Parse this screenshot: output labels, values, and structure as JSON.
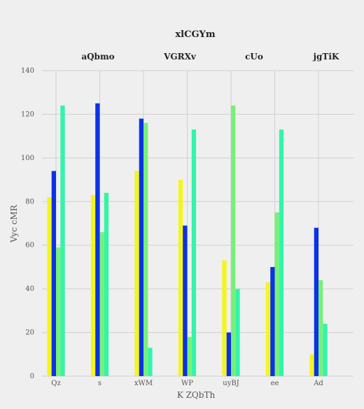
{
  "chart_data": {
    "type": "bar",
    "title": "xlCGYm",
    "xlabel": "K ZQbTh",
    "ylabel": "Vyc cMR",
    "ylim": [
      0,
      140
    ],
    "yticks": [
      0,
      20,
      40,
      60,
      80,
      100,
      120,
      140
    ],
    "grid": true,
    "legend_position": "top",
    "categories": [
      "Qz",
      "s",
      "xWM",
      "WP",
      "uyBJ",
      "ee",
      "Ad"
    ],
    "series": [
      {
        "name": "aQbmo",
        "color": "#f5f51e",
        "values": [
          82,
          83,
          94,
          90,
          53,
          43,
          10
        ]
      },
      {
        "name": "VGRXv",
        "color": "#0a32e6",
        "values": [
          94,
          125,
          118,
          69,
          20,
          50,
          68
        ]
      },
      {
        "name": "cUo",
        "color": "#78f078",
        "values": [
          59,
          66,
          116,
          18,
          124,
          75,
          44
        ]
      },
      {
        "name": "jgTiK",
        "color": "#32f5aa",
        "values": [
          124,
          84,
          13,
          113,
          40,
          113,
          24
        ]
      }
    ]
  }
}
